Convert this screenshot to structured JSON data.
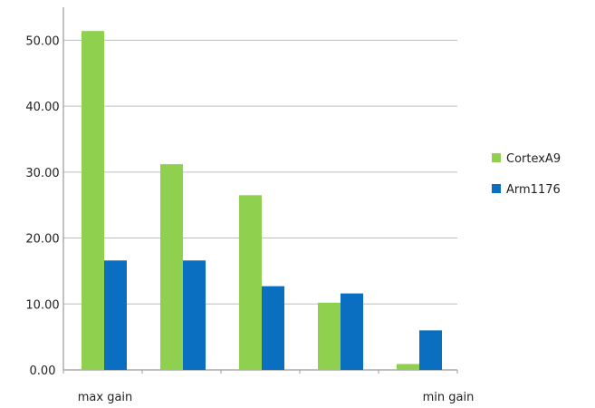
{
  "chart_data": {
    "type": "bar",
    "categories": [
      "max gain",
      "",
      "",
      "",
      "min gain"
    ],
    "series": [
      {
        "name": "CortexA9",
        "color": "#8fd14f",
        "values": [
          51.4,
          31.2,
          26.5,
          10.2,
          0.9
        ]
      },
      {
        "name": "Arm1176",
        "color": "#0b6fc1",
        "values": [
          16.6,
          16.6,
          12.7,
          11.6,
          6.0
        ]
      }
    ],
    "yticks": [
      "0.00",
      "10.00",
      "20.00",
      "30.00",
      "40.00",
      "50.00"
    ],
    "ylim": [
      0,
      55
    ],
    "grid": true,
    "legend_position": "right"
  }
}
